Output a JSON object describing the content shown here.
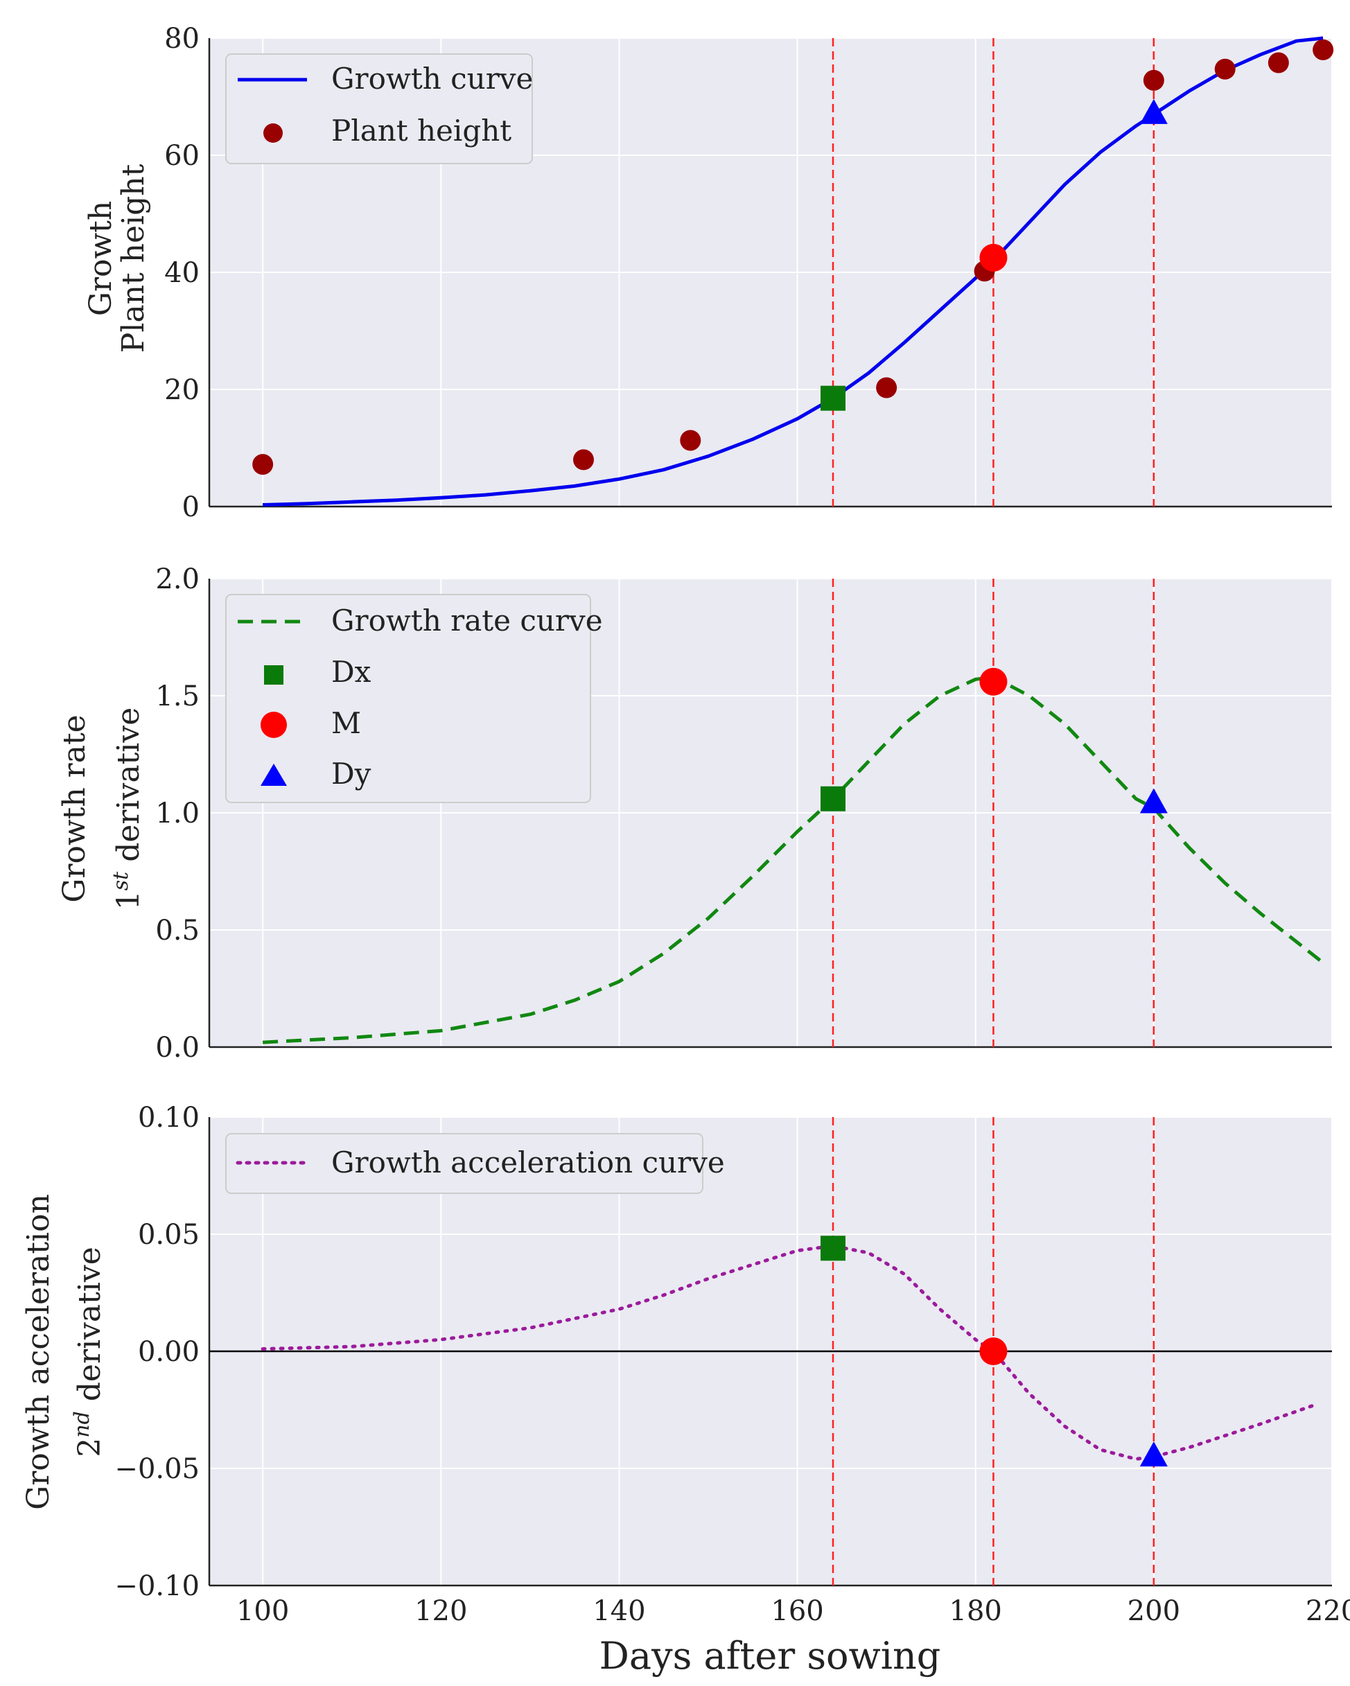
{
  "chart_data": [
    {
      "type": "line",
      "title": "",
      "ylabel_line1": "Growth",
      "ylabel_line2": "Plant height",
      "ylim": [
        0,
        80
      ],
      "xlim": [
        94,
        220
      ],
      "yticks": [
        "0",
        "20",
        "40",
        "60",
        "80"
      ],
      "ytick_values": [
        0,
        20,
        40,
        60,
        80
      ],
      "legend_location": "top-left",
      "series": [
        {
          "name": "Growth curve",
          "kind": "line",
          "color": "#0000ee",
          "x": [
            100,
            105,
            110,
            115,
            120,
            125,
            130,
            135,
            140,
            145,
            150,
            155,
            160,
            164,
            168,
            172,
            176,
            180,
            182,
            186,
            190,
            194,
            198,
            200,
            204,
            208,
            212,
            216,
            219
          ],
          "y": [
            0.3,
            0.5,
            0.8,
            1.1,
            1.5,
            2.0,
            2.7,
            3.5,
            4.7,
            6.3,
            8.6,
            11.5,
            15.0,
            18.5,
            22.8,
            28.0,
            33.5,
            39.0,
            42.0,
            48.5,
            55.0,
            60.5,
            65.0,
            67.0,
            71.0,
            74.5,
            77.2,
            79.5,
            80.0
          ]
        },
        {
          "name": "Plant height",
          "kind": "scatter",
          "color": "#990000",
          "x": [
            100,
            136,
            148,
            170,
            181,
            200,
            208,
            214,
            219
          ],
          "y": [
            7.2,
            8.0,
            11.3,
            20.3,
            40.2,
            72.8,
            74.7,
            75.8,
            78.0
          ]
        }
      ],
      "markers": [
        {
          "label": "Dx",
          "shape": "square",
          "color": "#0a7a0a",
          "x": 164,
          "y": 18.5
        },
        {
          "label": "M",
          "shape": "circle",
          "color": "#ff0000",
          "x": 182,
          "y": 42.5
        },
        {
          "label": "Dy",
          "shape": "triangle",
          "color": "#0000ff",
          "x": 200,
          "y": 67.0
        }
      ],
      "vlines": [
        164,
        182,
        200
      ],
      "hline": null
    },
    {
      "type": "line",
      "title": "",
      "ylabel_line1": "Growth rate",
      "ylabel_line2_base": "1",
      "ylabel_line2_sup": "st",
      "ylabel_line2_rest": " derivative",
      "ylim": [
        0,
        2.0
      ],
      "xlim": [
        94,
        220
      ],
      "yticks": [
        "0.0",
        "0.5",
        "1.0",
        "1.5",
        "2.0"
      ],
      "ytick_values": [
        0,
        0.5,
        1.0,
        1.5,
        2.0
      ],
      "legend_location": "top-left",
      "series": [
        {
          "name": "Growth rate curve",
          "kind": "dashed-line",
          "color": "#118811",
          "x": [
            100,
            110,
            120,
            130,
            135,
            140,
            145,
            150,
            155,
            160,
            164,
            168,
            172,
            176,
            180,
            182,
            186,
            190,
            194,
            198,
            200,
            204,
            208,
            212,
            216,
            219
          ],
          "y": [
            0.02,
            0.04,
            0.07,
            0.14,
            0.2,
            0.28,
            0.4,
            0.55,
            0.73,
            0.92,
            1.06,
            1.22,
            1.38,
            1.5,
            1.57,
            1.58,
            1.5,
            1.38,
            1.22,
            1.06,
            1.02,
            0.85,
            0.7,
            0.57,
            0.45,
            0.36
          ]
        }
      ],
      "markers": [
        {
          "label": "Dx",
          "shape": "square",
          "color": "#0a7a0a",
          "x": 164,
          "y": 1.06
        },
        {
          "label": "M",
          "shape": "circle",
          "color": "#ff0000",
          "x": 182,
          "y": 1.56
        },
        {
          "label": "Dy",
          "shape": "triangle",
          "color": "#0000ff",
          "x": 200,
          "y": 1.04
        }
      ],
      "vlines": [
        164,
        182,
        200
      ],
      "hline": null
    },
    {
      "type": "line",
      "title": "",
      "ylabel_line1": "Growth acceleration",
      "ylabel_line2_base": "2",
      "ylabel_line2_sup": "nd",
      "ylabel_line2_rest": " derivative",
      "xlabel": "Days after sowing",
      "ylim": [
        -0.1,
        0.1
      ],
      "xlim": [
        94,
        220
      ],
      "yticks": [
        "−0.10",
        "−0.05",
        "0.00",
        "0.05",
        "0.10"
      ],
      "ytick_values": [
        -0.1,
        -0.05,
        0.0,
        0.05,
        0.1
      ],
      "xticks": [
        "100",
        "120",
        "140",
        "160",
        "180",
        "200",
        "220"
      ],
      "xtick_values": [
        100,
        120,
        140,
        160,
        180,
        200,
        220
      ],
      "legend_location": "top-left",
      "series": [
        {
          "name": "Growth acceleration curve",
          "kind": "dotted-line",
          "color": "#9b1b9b",
          "x": [
            100,
            110,
            120,
            130,
            140,
            145,
            150,
            155,
            160,
            164,
            168,
            172,
            176,
            180,
            182,
            186,
            190,
            194,
            198,
            200,
            204,
            208,
            212,
            218
          ],
          "y": [
            0.001,
            0.002,
            0.005,
            0.01,
            0.018,
            0.024,
            0.031,
            0.037,
            0.043,
            0.045,
            0.042,
            0.033,
            0.018,
            0.005,
            0.0,
            -0.018,
            -0.032,
            -0.042,
            -0.046,
            -0.045,
            -0.041,
            -0.036,
            -0.031,
            -0.023
          ]
        }
      ],
      "markers": [
        {
          "label": "Dx",
          "shape": "square",
          "color": "#0a7a0a",
          "x": 164,
          "y": 0.044
        },
        {
          "label": "M",
          "shape": "circle",
          "color": "#ff0000",
          "x": 182,
          "y": 0.0
        },
        {
          "label": "Dy",
          "shape": "triangle",
          "color": "#0000ff",
          "x": 200,
          "y": -0.045
        }
      ],
      "vlines": [
        164,
        182,
        200
      ],
      "hline": 0
    }
  ],
  "legend_labels": {
    "growth_curve": "Growth curve",
    "plant_height": "Plant height",
    "growth_rate_curve": "Growth rate curve",
    "dx": "Dx",
    "m": "M",
    "dy": "Dy",
    "growth_acceleration_curve": "Growth acceleration curve"
  },
  "colors": {
    "panel_bg": "#eaeaf2",
    "grid": "#ffffff",
    "vline": "#ff2020",
    "hline": "#000000",
    "axis": "#222222"
  }
}
